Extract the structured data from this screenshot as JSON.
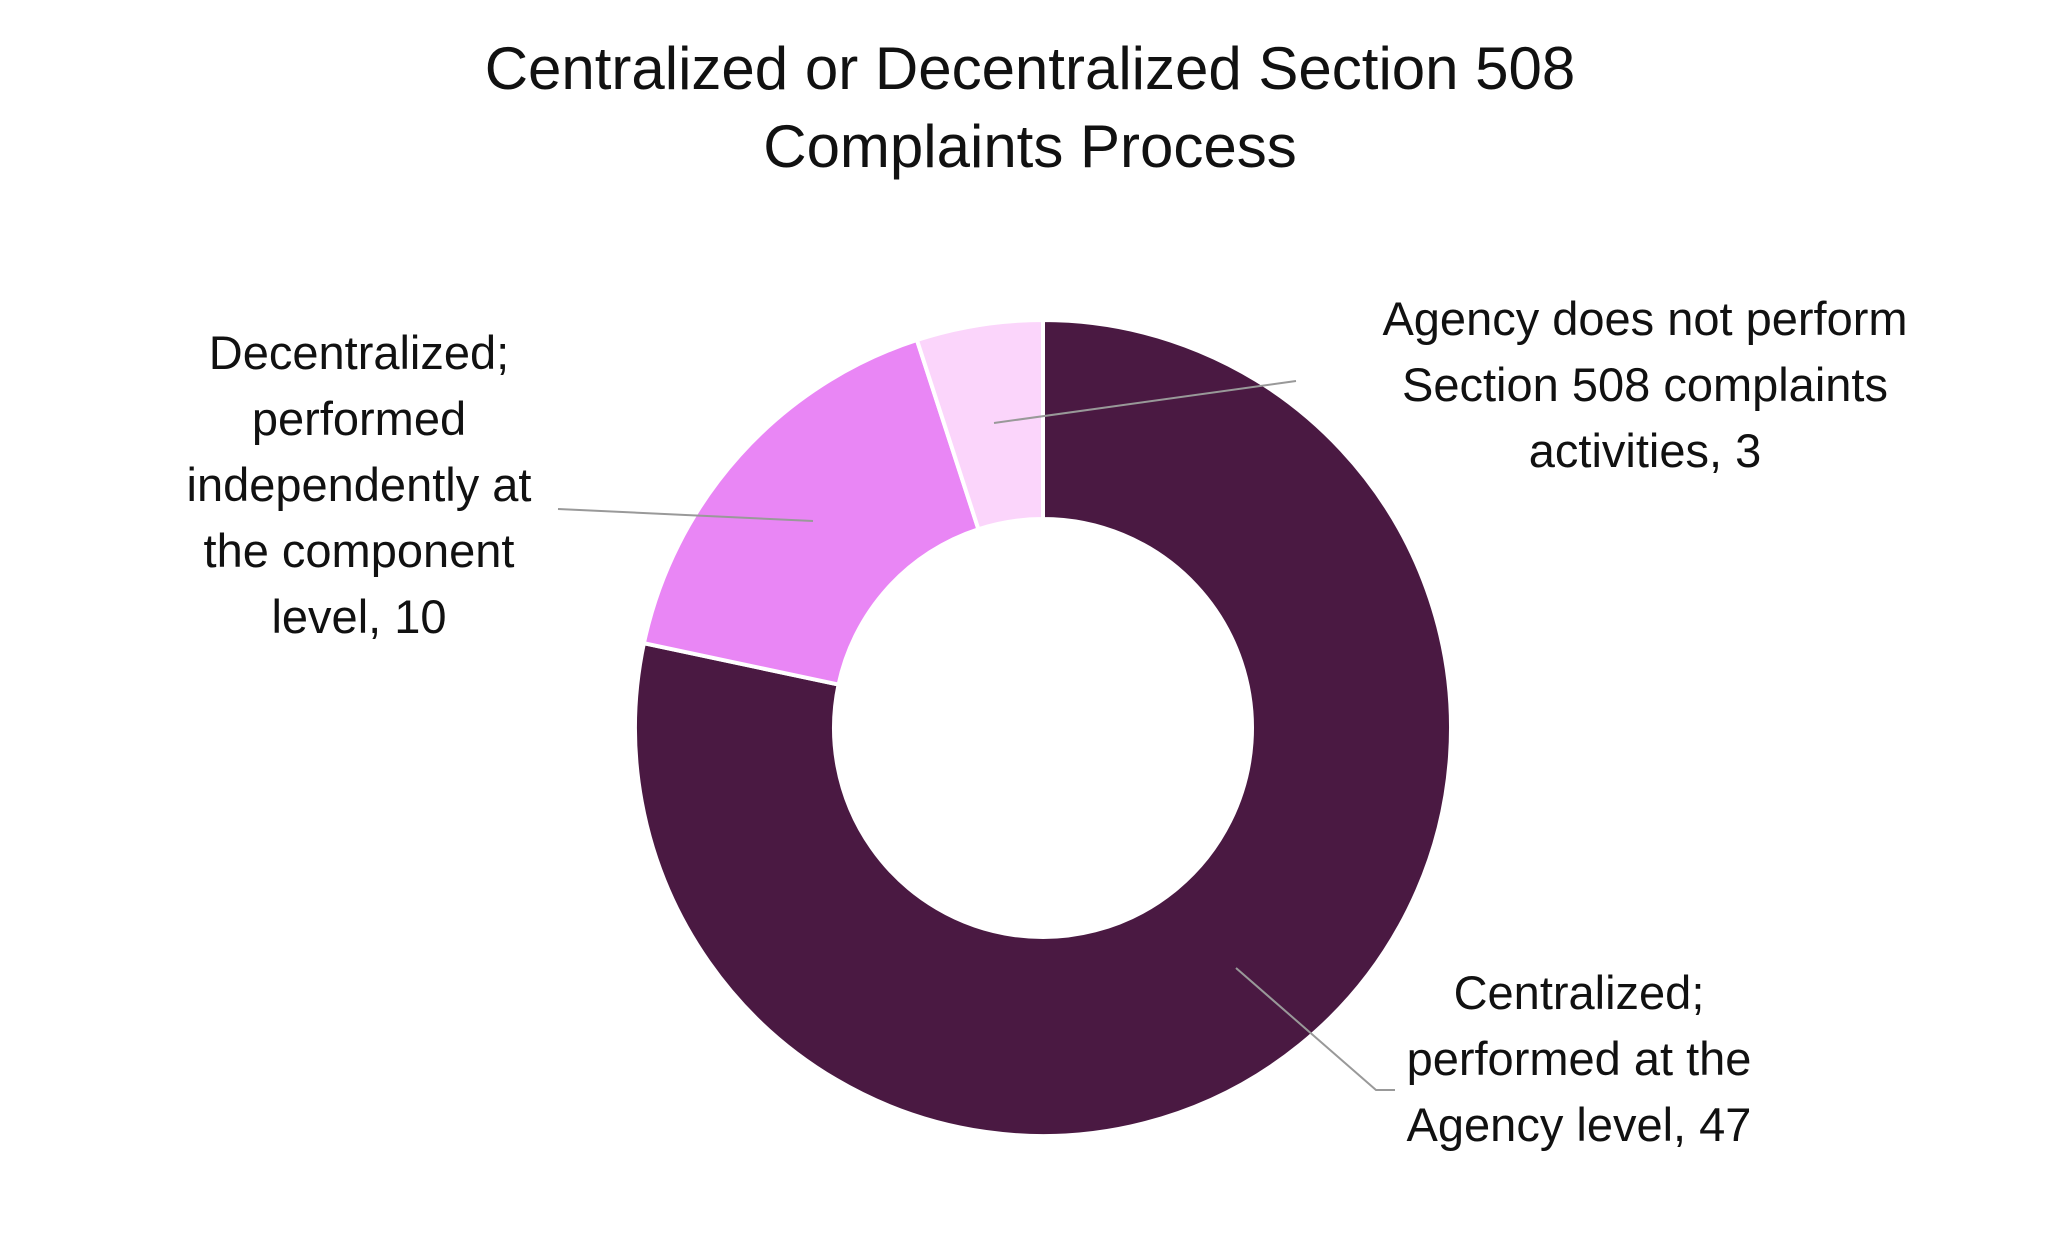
{
  "chart_data": {
    "type": "donut",
    "title": "Centralized or Decentralized Section 508 Complaints Process",
    "categories": [
      "Centralized; performed at the Agency level",
      "Decentralized; performed independently at the component level",
      "Agency does not perform Section 508 complaints activities"
    ],
    "values": [
      47,
      10,
      3
    ],
    "value_labels": [
      "Centralized; performed at the Agency level, 47",
      "Decentralized; performed independently at the component level, 10",
      "Agency does not perform Section 508 complaints activities, 3"
    ],
    "colors": [
      "#4a1942",
      "#e986f5",
      "#fbd5fb"
    ]
  }
}
